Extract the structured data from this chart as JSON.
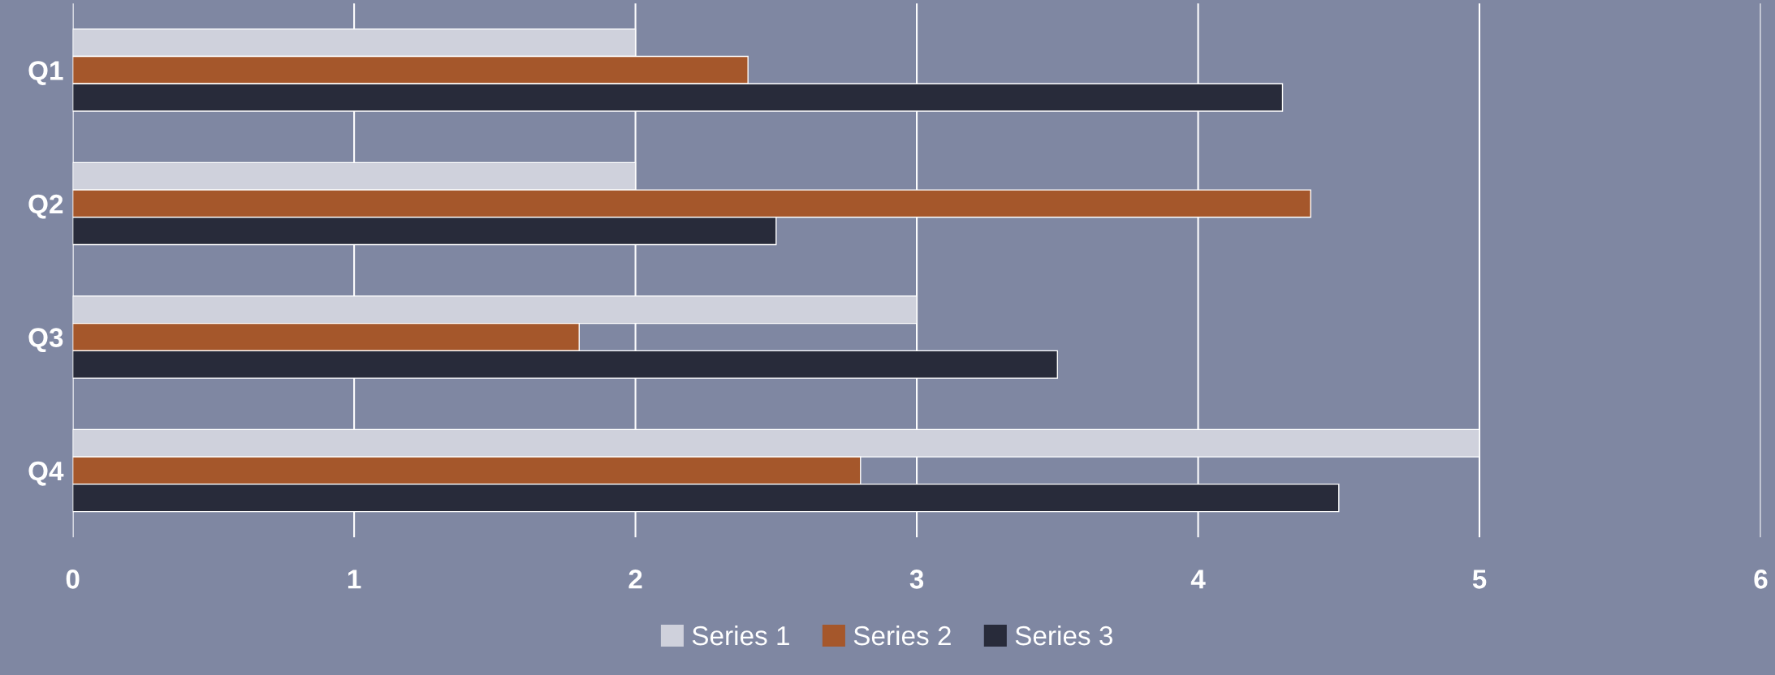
{
  "chart_data": {
    "type": "bar",
    "orientation": "horizontal",
    "categories": [
      "Q1",
      "Q2",
      "Q3",
      "Q4"
    ],
    "series": [
      {
        "name": "Series 1",
        "color": "#cfd1dc",
        "values": [
          2,
          2,
          3,
          5
        ]
      },
      {
        "name": "Series 2",
        "color": "#a5572b",
        "values": [
          2.4,
          4.4,
          1.8,
          2.8
        ]
      },
      {
        "name": "Series 3",
        "color": "#282b3a",
        "values": [
          4.3,
          2.5,
          3.5,
          4.5
        ]
      }
    ],
    "xlim": [
      0,
      6
    ],
    "xticks": [
      0,
      1,
      2,
      3,
      4,
      5,
      6
    ],
    "grid": "x",
    "legend": "bottom"
  }
}
